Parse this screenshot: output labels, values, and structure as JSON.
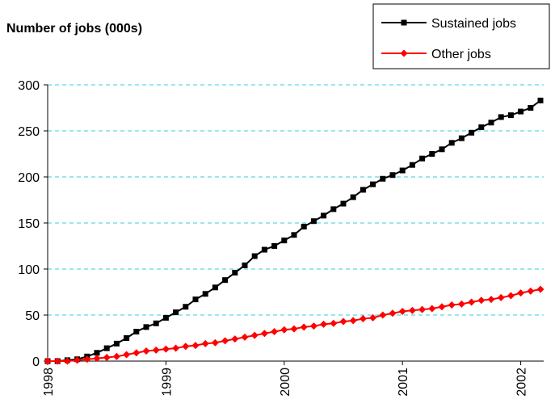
{
  "chart_data": {
    "type": "line",
    "title": "Number of jobs (000s)",
    "categories": [
      "1998",
      null,
      null,
      null,
      null,
      null,
      null,
      null,
      null,
      null,
      null,
      null,
      "1999",
      null,
      null,
      null,
      null,
      null,
      null,
      null,
      null,
      null,
      null,
      null,
      "2000",
      null,
      null,
      null,
      null,
      null,
      null,
      null,
      null,
      null,
      null,
      null,
      "2001",
      null,
      null,
      null,
      null,
      null,
      null,
      null,
      null,
      null,
      null,
      null,
      "2002",
      null,
      null
    ],
    "series": [
      {
        "name": "Sustained jobs",
        "color": "#000000",
        "marker": "square",
        "values": [
          0,
          0,
          1,
          2,
          5,
          9,
          14,
          19,
          25,
          32,
          37,
          41,
          47,
          53,
          59,
          67,
          73,
          80,
          88,
          96,
          104,
          114,
          121,
          125,
          131,
          137,
          146,
          152,
          158,
          165,
          171,
          178,
          186,
          192,
          198,
          202,
          207,
          213,
          220,
          225,
          230,
          237,
          242,
          248,
          254,
          259,
          265,
          267,
          271,
          275,
          283
        ]
      },
      {
        "name": "Other jobs",
        "color": "#ff0000",
        "marker": "diamond",
        "values": [
          0,
          0,
          0,
          1,
          2,
          3,
          4,
          5,
          7,
          9,
          11,
          12,
          13,
          14,
          16,
          17,
          19,
          20,
          22,
          24,
          26,
          28,
          30,
          32,
          34,
          35,
          37,
          38,
          40,
          41,
          43,
          44,
          46,
          47,
          50,
          52,
          54,
          55,
          56,
          57,
          59,
          61,
          62,
          64,
          66,
          67,
          69,
          71,
          74,
          76,
          78
        ]
      }
    ],
    "ylim": [
      0,
      300
    ],
    "yticks": [
      0,
      50,
      100,
      150,
      200,
      250,
      300
    ],
    "grid": true,
    "legend": "top-right"
  }
}
